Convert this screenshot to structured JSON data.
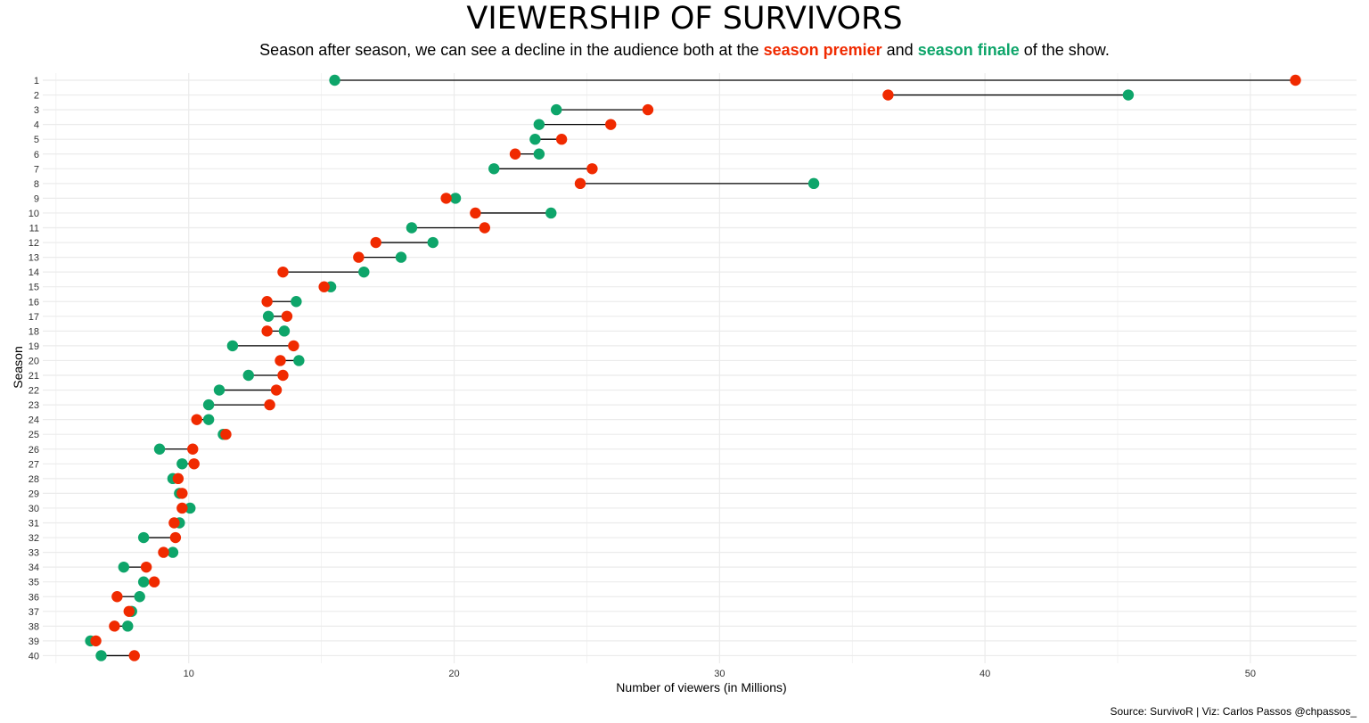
{
  "colors": {
    "premier": "#f02a00",
    "finale": "#0ea56a",
    "segment": "#000000",
    "grid": "#ebebeb"
  },
  "chart_data": {
    "type": "scatter",
    "title": "VIEWERSHIP OF SURVIVORS",
    "subtitle": {
      "before": "Season after season, we can see a decline in the audience both at the ",
      "premier": "season premier",
      "middle": " and ",
      "finale": "season finale",
      "after": " of the show."
    },
    "xlabel": "Number of viewers (in Millions)",
    "ylabel": "Season",
    "xlim": [
      4.5,
      54
    ],
    "x_ticks": [
      10,
      20,
      30,
      40,
      50
    ],
    "grid": true,
    "categories": [
      "1",
      "2",
      "3",
      "4",
      "5",
      "6",
      "7",
      "8",
      "9",
      "10",
      "11",
      "12",
      "13",
      "14",
      "15",
      "16",
      "17",
      "18",
      "19",
      "20",
      "21",
      "22",
      "23",
      "24",
      "25",
      "26",
      "27",
      "28",
      "29",
      "30",
      "31",
      "32",
      "33",
      "34",
      "35",
      "36",
      "37",
      "38",
      "39",
      "40"
    ],
    "series": [
      {
        "name": "season premier",
        "color": "#f02a00",
        "values": [
          51.7,
          36.35,
          27.3,
          25.9,
          24.05,
          22.3,
          25.2,
          24.75,
          19.7,
          20.8,
          21.15,
          17.05,
          16.4,
          13.55,
          15.1,
          12.95,
          13.7,
          12.95,
          13.95,
          13.45,
          13.55,
          13.3,
          13.05,
          10.3,
          11.4,
          10.15,
          10.2,
          9.6,
          9.75,
          9.75,
          9.45,
          9.5,
          9.05,
          8.4,
          8.7,
          7.3,
          7.75,
          7.2,
          6.5,
          7.95
        ]
      },
      {
        "name": "season finale",
        "color": "#0ea56a",
        "values": [
          15.5,
          45.4,
          23.85,
          23.2,
          23.05,
          23.2,
          21.5,
          33.55,
          20.05,
          23.65,
          18.4,
          19.2,
          18.0,
          16.6,
          15.35,
          14.05,
          13.0,
          13.6,
          11.65,
          14.15,
          12.25,
          11.15,
          10.75,
          10.75,
          11.3,
          8.9,
          9.75,
          9.4,
          9.65,
          10.05,
          9.65,
          8.3,
          9.4,
          7.55,
          8.3,
          8.15,
          7.85,
          7.7,
          6.3,
          6.7
        ]
      }
    ]
  },
  "caption": "Source: SurvivoR |  Viz: Carlos Passos @chpassos_"
}
